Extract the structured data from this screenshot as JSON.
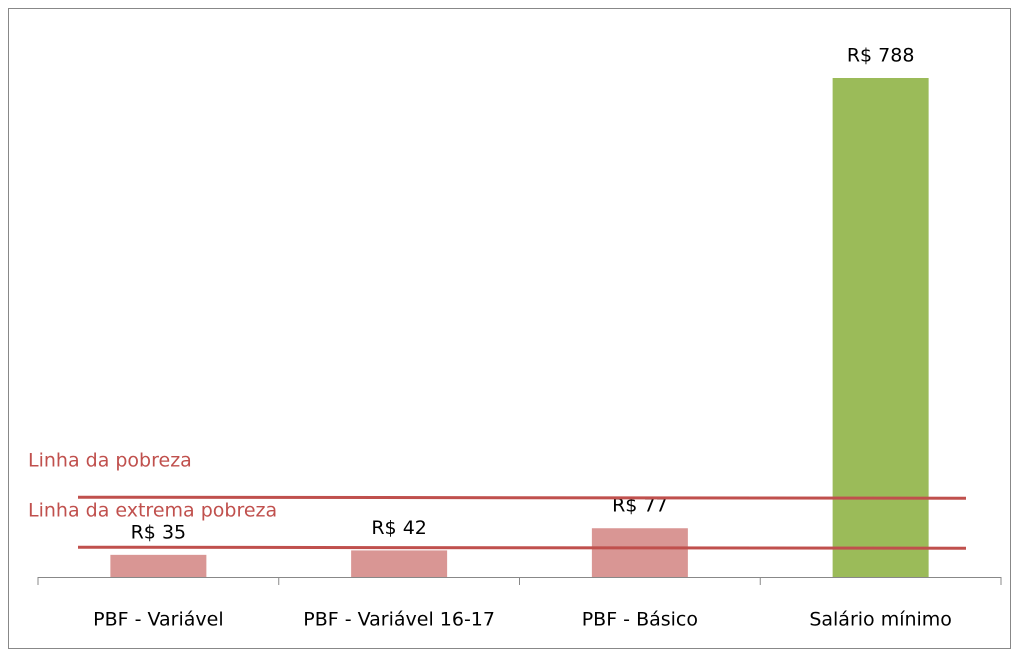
{
  "chart_data": {
    "type": "bar",
    "categories": [
      "PBF - Variável",
      "PBF - Variável 16-17",
      "PBF - Básico",
      "Salário mínimo"
    ],
    "values": [
      35,
      42,
      77,
      788
    ],
    "value_labels": [
      "R$ 35",
      "R$ 42",
      "R$ 77",
      "R$ 788"
    ],
    "colors": [
      "#d99694",
      "#d99694",
      "#d99694",
      "#9bbb59"
    ],
    "reference_lines": [
      {
        "label": "Linha da pobreza",
        "value": 126,
        "color": "#c0504d"
      },
      {
        "label": "Linha da extrema pobreza",
        "value": 47,
        "color": "#c0504d"
      }
    ]
  }
}
